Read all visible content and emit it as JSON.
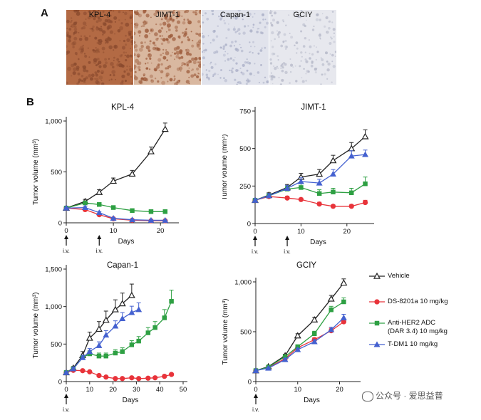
{
  "panel_labels": {
    "a": "A",
    "b": "B"
  },
  "ihc": {
    "tiles": [
      {
        "label": "KPL-4",
        "color": "#8a4a2e",
        "bg": "#b36a44"
      },
      {
        "label": "JIMT-1",
        "color": "#9c5a3a",
        "bg": "#d9b8a0"
      },
      {
        "label": "Capan-1",
        "color": "#a9aec6",
        "bg": "#e1e3ec"
      },
      {
        "label": "GCIY",
        "color": "#b5b8c8",
        "bg": "#e7e8ee"
      }
    ]
  },
  "series_styles": [
    {
      "key": "vehicle",
      "color": "#222222",
      "marker": "triangle-open"
    },
    {
      "key": "ds8201a",
      "color": "#e8333a",
      "marker": "circle"
    },
    {
      "key": "antiher2",
      "color": "#2ea043",
      "marker": "square"
    },
    {
      "key": "tdm1",
      "color": "#4461d0",
      "marker": "triangle"
    }
  ],
  "legend": {
    "items": [
      {
        "lines": [
          "Vehicle"
        ]
      },
      {
        "lines": [
          "DS-8201a 10 mg/kg"
        ]
      },
      {
        "lines": [
          "Anti-HER2 ADC",
          "(DAR 3.4) 10 mg/kg"
        ]
      },
      {
        "lines": [
          "T-DM1 10 mg/kg"
        ]
      }
    ]
  },
  "watermark": "公众号 · 爱思益普",
  "chart_data": [
    {
      "type": "line",
      "title": "KPL-4",
      "xlabel": "Days",
      "ylabel": "Tumor volume (mm³)",
      "xlim": [
        0,
        23
      ],
      "ylim": [
        0,
        1000
      ],
      "xticks": [
        0,
        10,
        20
      ],
      "yticks": [
        0,
        500,
        1000
      ],
      "ytick_labels": [
        "0",
        "500",
        "1,000"
      ],
      "dosing": [
        {
          "day": 0,
          "label": "i.v."
        },
        {
          "day": 7,
          "label": "i.v."
        }
      ],
      "series": [
        {
          "x": [
            0,
            4,
            7,
            10,
            14,
            18,
            21
          ],
          "y": [
            145,
            210,
            300,
            410,
            480,
            700,
            920
          ],
          "err": [
            10,
            20,
            25,
            30,
            35,
            45,
            60
          ]
        },
        {
          "x": [
            0,
            4,
            7,
            10,
            14,
            18,
            21
          ],
          "y": [
            145,
            130,
            80,
            40,
            25,
            20,
            20
          ],
          "err": [
            8,
            10,
            8,
            5,
            4,
            3,
            3
          ]
        },
        {
          "x": [
            0,
            4,
            7,
            10,
            14,
            18,
            21
          ],
          "y": [
            145,
            195,
            180,
            150,
            120,
            110,
            110
          ],
          "err": [
            8,
            12,
            12,
            10,
            8,
            8,
            8
          ]
        },
        {
          "x": [
            0,
            4,
            7,
            10,
            14,
            18,
            21
          ],
          "y": [
            145,
            150,
            100,
            45,
            30,
            25,
            25
          ],
          "err": [
            8,
            10,
            8,
            5,
            4,
            3,
            3
          ]
        }
      ]
    },
    {
      "type": "line",
      "title": "JIMT-1",
      "xlabel": "Days",
      "ylabel": "Tumor volume (mm³)",
      "xlim": [
        0,
        25
      ],
      "ylim": [
        0,
        750
      ],
      "xticks": [
        0,
        10,
        20
      ],
      "yticks": [
        0,
        250,
        500,
        750
      ],
      "ytick_labels": [
        "0",
        "250",
        "500",
        "750"
      ],
      "dosing": [
        {
          "day": 0,
          "label": "i.v."
        },
        {
          "day": 7,
          "label": "i.v."
        }
      ],
      "series": [
        {
          "x": [
            0,
            3,
            7,
            10,
            14,
            17,
            21,
            24
          ],
          "y": [
            155,
            190,
            240,
            310,
            330,
            420,
            500,
            580
          ],
          "err": [
            10,
            15,
            20,
            25,
            30,
            35,
            40,
            45
          ]
        },
        {
          "x": [
            0,
            3,
            7,
            10,
            14,
            17,
            21,
            24
          ],
          "y": [
            155,
            180,
            170,
            160,
            130,
            115,
            115,
            140
          ],
          "err": [
            10,
            12,
            12,
            10,
            12,
            10,
            12,
            15
          ]
        },
        {
          "x": [
            0,
            3,
            7,
            10,
            14,
            17,
            21,
            24
          ],
          "y": [
            155,
            185,
            230,
            240,
            200,
            210,
            205,
            265
          ],
          "err": [
            10,
            15,
            20,
            25,
            25,
            25,
            30,
            45
          ]
        },
        {
          "x": [
            0,
            3,
            7,
            10,
            14,
            17,
            21,
            24
          ],
          "y": [
            155,
            185,
            235,
            280,
            270,
            330,
            450,
            460
          ],
          "err": [
            10,
            15,
            20,
            25,
            25,
            30,
            35,
            30
          ]
        }
      ]
    },
    {
      "type": "line",
      "title": "Capan-1",
      "xlabel": "Days",
      "ylabel": "Tumor volume (mm³)",
      "xlim": [
        0,
        50
      ],
      "ylim": [
        0,
        1500
      ],
      "xticks": [
        0,
        10,
        20,
        30,
        40,
        50
      ],
      "yticks": [
        0,
        500,
        1000,
        1500
      ],
      "ytick_labels": [
        "0",
        "500",
        "1,000",
        "1,500"
      ],
      "dosing": [
        {
          "day": 0,
          "label": "i.v."
        }
      ],
      "series": [
        {
          "x": [
            0,
            3,
            7,
            10,
            14,
            17,
            21,
            24,
            28
          ],
          "y": [
            120,
            180,
            350,
            580,
            700,
            820,
            960,
            1040,
            1150
          ],
          "err": [
            10,
            20,
            50,
            80,
            100,
            120,
            130,
            140,
            150
          ]
        },
        {
          "x": [
            0,
            3,
            7,
            10,
            14,
            17,
            21,
            24,
            28,
            31,
            35,
            38,
            42,
            45
          ],
          "y": [
            120,
            150,
            145,
            130,
            80,
            60,
            40,
            40,
            50,
            40,
            45,
            50,
            70,
            95
          ],
          "err": [
            8,
            10,
            10,
            10,
            8,
            8,
            6,
            6,
            6,
            6,
            6,
            6,
            8,
            10
          ]
        },
        {
          "x": [
            0,
            3,
            7,
            10,
            14,
            17,
            21,
            24,
            28,
            31,
            35,
            38,
            42,
            45
          ],
          "y": [
            120,
            170,
            320,
            370,
            340,
            340,
            380,
            400,
            490,
            540,
            650,
            720,
            850,
            1070
          ],
          "err": [
            10,
            15,
            30,
            40,
            40,
            40,
            45,
            50,
            55,
            60,
            70,
            80,
            110,
            150
          ]
        },
        {
          "x": [
            0,
            3,
            7,
            10,
            14,
            17,
            21,
            24,
            28,
            31
          ],
          "y": [
            120,
            170,
            320,
            400,
            480,
            620,
            740,
            840,
            920,
            960
          ],
          "err": [
            10,
            15,
            30,
            40,
            50,
            60,
            70,
            80,
            85,
            90
          ]
        }
      ]
    },
    {
      "type": "line",
      "title": "GCIY",
      "xlabel": "Days",
      "ylabel": "Tumor volume (mm³)",
      "xlim": [
        0,
        24
      ],
      "ylim": [
        0,
        1000
      ],
      "xticks": [
        0,
        10,
        20
      ],
      "yticks": [
        0,
        500,
        1000
      ],
      "ytick_labels": [
        "0",
        "500",
        "1,000"
      ],
      "dosing": [
        {
          "day": 0,
          "label": "i.v."
        }
      ],
      "series": [
        {
          "x": [
            0,
            3,
            7,
            10,
            14,
            18,
            21
          ],
          "y": [
            110,
            150,
            260,
            460,
            620,
            830,
            990
          ],
          "err": [
            8,
            10,
            15,
            20,
            25,
            35,
            40
          ]
        },
        {
          "x": [
            0,
            3,
            7,
            10,
            14,
            18,
            21
          ],
          "y": [
            110,
            140,
            230,
            340,
            420,
            510,
            600
          ],
          "err": [
            8,
            10,
            12,
            15,
            20,
            25,
            30
          ]
        },
        {
          "x": [
            0,
            3,
            7,
            10,
            14,
            18,
            21
          ],
          "y": [
            110,
            145,
            250,
            350,
            480,
            720,
            800
          ],
          "err": [
            8,
            10,
            12,
            15,
            25,
            35,
            40
          ]
        },
        {
          "x": [
            0,
            3,
            7,
            10,
            14,
            18,
            21
          ],
          "y": [
            110,
            135,
            220,
            320,
            400,
            520,
            640
          ],
          "err": [
            8,
            10,
            12,
            15,
            20,
            25,
            35
          ]
        }
      ]
    }
  ]
}
